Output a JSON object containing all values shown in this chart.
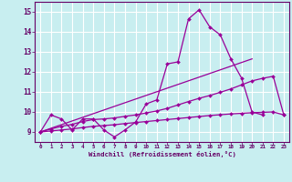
{
  "background_color": "#c8eef0",
  "grid_color": "#ffffff",
  "line_color": "#990099",
  "xlabel": "Windchill (Refroidissement éolien,°C)",
  "xlabel_color": "#660066",
  "tick_color": "#660066",
  "xlim": [
    -0.5,
    23.5
  ],
  "ylim": [
    8.5,
    15.5
  ],
  "yticks": [
    9,
    10,
    11,
    12,
    13,
    14,
    15
  ],
  "xticks": [
    0,
    1,
    2,
    3,
    4,
    5,
    6,
    7,
    8,
    9,
    10,
    11,
    12,
    13,
    14,
    15,
    16,
    17,
    18,
    19,
    20,
    21,
    22,
    23
  ],
  "line1_x": [
    0,
    1,
    2,
    3,
    4,
    5,
    6,
    7,
    8,
    9,
    10,
    11,
    12,
    13,
    14,
    15,
    16,
    17,
    18,
    19,
    20,
    21
  ],
  "line1_y": [
    9.0,
    9.85,
    9.65,
    9.1,
    9.65,
    9.65,
    9.1,
    8.75,
    9.1,
    9.5,
    10.4,
    10.6,
    12.4,
    12.5,
    14.65,
    15.1,
    14.25,
    13.85,
    12.65,
    11.7,
    10.0,
    9.85
  ],
  "line2_x": [
    0,
    1,
    2,
    3,
    4,
    5,
    6,
    7,
    8,
    9,
    10,
    11,
    12,
    13,
    14,
    15,
    16,
    17,
    18,
    19,
    20,
    21,
    22,
    23
  ],
  "line2_y": [
    9.0,
    9.15,
    9.28,
    9.38,
    9.52,
    9.62,
    9.65,
    9.7,
    9.78,
    9.85,
    9.95,
    10.05,
    10.18,
    10.35,
    10.52,
    10.68,
    10.82,
    10.98,
    11.15,
    11.35,
    11.55,
    11.68,
    11.78,
    9.85
  ],
  "line3_x": [
    0,
    1,
    2,
    3,
    4,
    5,
    6,
    7,
    8,
    9,
    10,
    11,
    12,
    13,
    14,
    15,
    16,
    17,
    18,
    19,
    20,
    21,
    22,
    23
  ],
  "line3_y": [
    9.0,
    9.05,
    9.1,
    9.15,
    9.22,
    9.28,
    9.32,
    9.36,
    9.42,
    9.47,
    9.52,
    9.57,
    9.62,
    9.67,
    9.72,
    9.77,
    9.82,
    9.86,
    9.9,
    9.93,
    9.96,
    9.98,
    10.0,
    9.85
  ],
  "line4_x": [
    0,
    20
  ],
  "line4_y": [
    9.0,
    12.65
  ]
}
